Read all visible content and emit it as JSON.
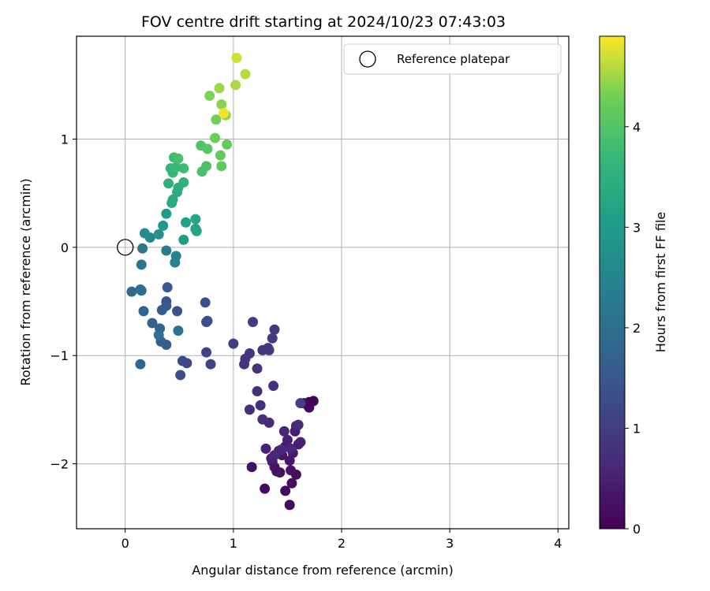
{
  "chart_data": {
    "type": "scatter",
    "title": "FOV centre drift starting at 2024/10/23 07:43:03",
    "xlabel": "Angular distance from reference (arcmin)",
    "ylabel": "Rotation from reference (arcmin)",
    "xlim": [
      -0.45,
      4.1
    ],
    "ylim": [
      -2.6,
      1.95
    ],
    "xticks": [
      0,
      1,
      2,
      3,
      4
    ],
    "yticks": [
      -2,
      -1,
      0,
      1
    ],
    "grid": true,
    "legend": {
      "position": "top-right",
      "label": "Reference platepar"
    },
    "reference_point": {
      "x": 0,
      "y": 0
    },
    "colorbar": {
      "label": "Hours from first FF file",
      "range": [
        0,
        4.9
      ],
      "ticks": [
        0,
        1,
        2,
        3,
        4
      ],
      "colormap": "viridis"
    },
    "points": [
      {
        "x": 1.7,
        "y": -1.43,
        "h": 0.02
      },
      {
        "x": 1.74,
        "y": -1.42,
        "h": 0.04
      },
      {
        "x": 1.69,
        "y": -1.46,
        "h": 0.06
      },
      {
        "x": 1.65,
        "y": -1.44,
        "h": 0.08
      },
      {
        "x": 1.7,
        "y": -1.48,
        "h": 0.1
      },
      {
        "x": 1.48,
        "y": -2.25,
        "h": 0.12
      },
      {
        "x": 1.29,
        "y": -2.23,
        "h": 0.14
      },
      {
        "x": 1.52,
        "y": -2.38,
        "h": 0.16
      },
      {
        "x": 1.58,
        "y": -2.1,
        "h": 0.18
      },
      {
        "x": 1.43,
        "y": -2.08,
        "h": 0.2
      },
      {
        "x": 1.54,
        "y": -2.18,
        "h": 0.22
      },
      {
        "x": 1.17,
        "y": -2.03,
        "h": 0.24
      },
      {
        "x": 1.38,
        "y": -2.03,
        "h": 0.26
      },
      {
        "x": 1.53,
        "y": -2.06,
        "h": 0.28
      },
      {
        "x": 1.4,
        "y": -2.07,
        "h": 0.3
      },
      {
        "x": 1.45,
        "y": -1.92,
        "h": 0.32
      },
      {
        "x": 1.52,
        "y": -1.97,
        "h": 0.34
      },
      {
        "x": 1.36,
        "y": -1.98,
        "h": 0.36
      },
      {
        "x": 1.55,
        "y": -1.9,
        "h": 0.38
      },
      {
        "x": 1.42,
        "y": -1.88,
        "h": 0.4
      },
      {
        "x": 1.6,
        "y": -1.82,
        "h": 0.42
      },
      {
        "x": 1.48,
        "y": -1.84,
        "h": 0.44
      },
      {
        "x": 1.57,
        "y": -1.7,
        "h": 0.46
      },
      {
        "x": 1.35,
        "y": -1.95,
        "h": 0.48
      },
      {
        "x": 1.5,
        "y": -1.78,
        "h": 0.5
      },
      {
        "x": 1.62,
        "y": -1.8,
        "h": 0.52
      },
      {
        "x": 1.3,
        "y": -1.86,
        "h": 0.54
      },
      {
        "x": 1.47,
        "y": -1.7,
        "h": 0.56
      },
      {
        "x": 1.58,
        "y": -1.65,
        "h": 0.58
      },
      {
        "x": 1.38,
        "y": -1.92,
        "h": 0.6
      },
      {
        "x": 1.53,
        "y": -1.86,
        "h": 0.62
      },
      {
        "x": 1.44,
        "y": -1.87,
        "h": 0.64
      },
      {
        "x": 1.6,
        "y": -1.64,
        "h": 0.66
      },
      {
        "x": 1.33,
        "y": -1.62,
        "h": 0.68
      },
      {
        "x": 1.27,
        "y": -1.59,
        "h": 0.7
      },
      {
        "x": 1.15,
        "y": -1.5,
        "h": 0.72
      },
      {
        "x": 1.25,
        "y": -1.46,
        "h": 0.74
      },
      {
        "x": 1.22,
        "y": -1.33,
        "h": 0.76
      },
      {
        "x": 1.37,
        "y": -1.28,
        "h": 0.78
      },
      {
        "x": 1.1,
        "y": -1.08,
        "h": 0.8
      },
      {
        "x": 1.22,
        "y": -1.12,
        "h": 0.82
      },
      {
        "x": 1.11,
        "y": -1.03,
        "h": 0.84
      },
      {
        "x": 1.15,
        "y": -0.98,
        "h": 0.86
      },
      {
        "x": 1.27,
        "y": -0.95,
        "h": 0.88
      },
      {
        "x": 1.32,
        "y": -0.93,
        "h": 0.9
      },
      {
        "x": 1.33,
        "y": -0.95,
        "h": 0.92
      },
      {
        "x": 1.36,
        "y": -0.84,
        "h": 0.94
      },
      {
        "x": 1.38,
        "y": -0.76,
        "h": 0.96
      },
      {
        "x": 1.18,
        "y": -0.69,
        "h": 0.98
      },
      {
        "x": 1.0,
        "y": -0.89,
        "h": 1.0
      },
      {
        "x": 1.62,
        "y": -1.44,
        "h": 1.05
      },
      {
        "x": 0.79,
        "y": -1.08,
        "h": 1.1
      },
      {
        "x": 0.75,
        "y": -0.97,
        "h": 1.14
      },
      {
        "x": 0.57,
        "y": -1.07,
        "h": 1.18
      },
      {
        "x": 0.53,
        "y": -1.05,
        "h": 1.22
      },
      {
        "x": 0.51,
        "y": -1.18,
        "h": 1.26
      },
      {
        "x": 0.75,
        "y": -0.69,
        "h": 1.3
      },
      {
        "x": 0.76,
        "y": -0.68,
        "h": 1.34
      },
      {
        "x": 0.74,
        "y": -0.51,
        "h": 1.38
      },
      {
        "x": 0.48,
        "y": -0.59,
        "h": 1.42
      },
      {
        "x": 0.38,
        "y": -0.5,
        "h": 1.46
      },
      {
        "x": 0.38,
        "y": -0.54,
        "h": 1.5
      },
      {
        "x": 0.39,
        "y": -0.37,
        "h": 1.54
      },
      {
        "x": 0.34,
        "y": -0.58,
        "h": 1.58
      },
      {
        "x": 0.38,
        "y": -0.9,
        "h": 1.62
      },
      {
        "x": 0.33,
        "y": -0.87,
        "h": 1.66
      },
      {
        "x": 0.32,
        "y": -0.75,
        "h": 1.7
      },
      {
        "x": 0.25,
        "y": -0.7,
        "h": 1.74
      },
      {
        "x": 0.17,
        "y": -0.59,
        "h": 1.78
      },
      {
        "x": 0.14,
        "y": -1.08,
        "h": 1.82
      },
      {
        "x": 0.06,
        "y": -0.41,
        "h": 1.86
      },
      {
        "x": 0.14,
        "y": -0.39,
        "h": 1.9
      },
      {
        "x": 0.15,
        "y": -0.4,
        "h": 1.94
      },
      {
        "x": 0.31,
        "y": -0.81,
        "h": 1.98
      },
      {
        "x": 0.49,
        "y": -0.77,
        "h": 2.02
      },
      {
        "x": 0.15,
        "y": -0.16,
        "h": 2.1
      },
      {
        "x": 0.16,
        "y": -0.01,
        "h": 2.2
      },
      {
        "x": 0.38,
        "y": -0.03,
        "h": 2.3
      },
      {
        "x": 0.46,
        "y": -0.14,
        "h": 2.4
      },
      {
        "x": 0.47,
        "y": -0.08,
        "h": 2.5
      },
      {
        "x": 0.23,
        "y": 0.09,
        "h": 2.6
      },
      {
        "x": 0.18,
        "y": 0.13,
        "h": 2.7
      },
      {
        "x": 0.31,
        "y": 0.12,
        "h": 2.8
      },
      {
        "x": 0.35,
        "y": 0.2,
        "h": 2.9
      },
      {
        "x": 0.38,
        "y": 0.31,
        "h": 3.0
      },
      {
        "x": 0.54,
        "y": 0.07,
        "h": 3.05
      },
      {
        "x": 0.56,
        "y": 0.23,
        "h": 3.1
      },
      {
        "x": 0.65,
        "y": 0.17,
        "h": 3.15
      },
      {
        "x": 0.66,
        "y": 0.15,
        "h": 3.2
      },
      {
        "x": 0.65,
        "y": 0.26,
        "h": 3.25
      },
      {
        "x": 0.43,
        "y": 0.41,
        "h": 3.3
      },
      {
        "x": 0.44,
        "y": 0.44,
        "h": 3.35
      },
      {
        "x": 0.48,
        "y": 0.51,
        "h": 3.4
      },
      {
        "x": 0.49,
        "y": 0.55,
        "h": 3.45
      },
      {
        "x": 0.4,
        "y": 0.59,
        "h": 3.5
      },
      {
        "x": 0.54,
        "y": 0.6,
        "h": 3.55
      },
      {
        "x": 0.44,
        "y": 0.69,
        "h": 3.6
      },
      {
        "x": 0.42,
        "y": 0.73,
        "h": 3.65
      },
      {
        "x": 0.47,
        "y": 0.74,
        "h": 3.7
      },
      {
        "x": 0.54,
        "y": 0.73,
        "h": 3.75
      },
      {
        "x": 0.45,
        "y": 0.83,
        "h": 3.8
      },
      {
        "x": 0.49,
        "y": 0.82,
        "h": 3.85
      },
      {
        "x": 0.71,
        "y": 0.7,
        "h": 3.9
      },
      {
        "x": 0.75,
        "y": 0.75,
        "h": 3.95
      },
      {
        "x": 0.7,
        "y": 0.94,
        "h": 4.0
      },
      {
        "x": 0.76,
        "y": 0.91,
        "h": 4.05
      },
      {
        "x": 0.89,
        "y": 0.75,
        "h": 4.1
      },
      {
        "x": 0.88,
        "y": 0.85,
        "h": 4.15
      },
      {
        "x": 0.94,
        "y": 0.95,
        "h": 4.2
      },
      {
        "x": 0.83,
        "y": 1.01,
        "h": 4.25
      },
      {
        "x": 0.84,
        "y": 1.18,
        "h": 4.3
      },
      {
        "x": 0.78,
        "y": 1.4,
        "h": 4.35
      },
      {
        "x": 0.89,
        "y": 1.32,
        "h": 4.4
      },
      {
        "x": 0.93,
        "y": 1.22,
        "h": 4.45
      },
      {
        "x": 0.87,
        "y": 1.47,
        "h": 4.5
      },
      {
        "x": 1.02,
        "y": 1.5,
        "h": 4.55
      },
      {
        "x": 1.11,
        "y": 1.6,
        "h": 4.6
      },
      {
        "x": 1.03,
        "y": 1.75,
        "h": 4.7
      },
      {
        "x": 0.91,
        "y": 1.24,
        "h": 4.85
      }
    ]
  }
}
